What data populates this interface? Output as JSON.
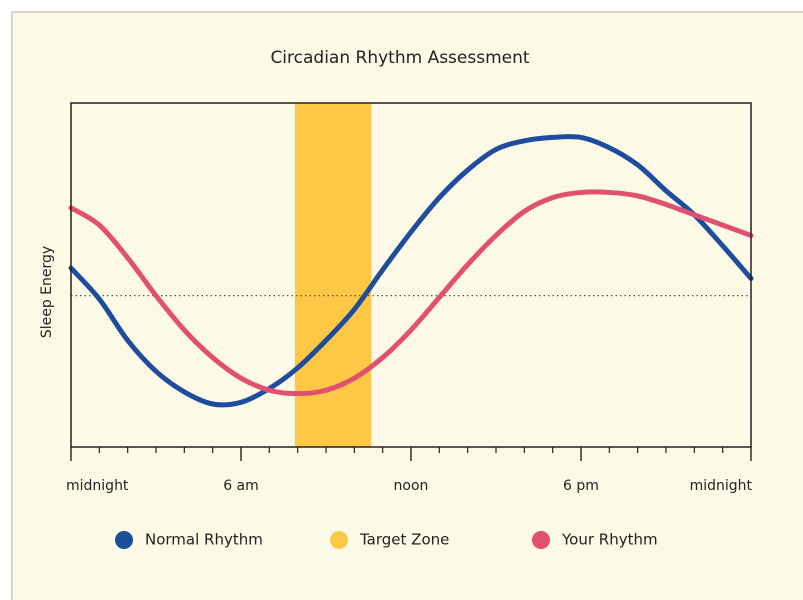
{
  "chart_data": {
    "type": "line",
    "title": "Circadian Rhythm Assessment",
    "y_label": "Sleep Energy",
    "x": [
      0,
      1,
      2,
      3,
      4,
      5,
      6,
      7,
      8,
      9,
      10,
      11,
      12,
      13,
      14,
      15,
      16,
      17,
      18,
      19,
      20,
      21,
      22,
      23,
      24
    ],
    "series": [
      {
        "name": "Normal Rhythm",
        "color": "#1f4d9e",
        "values": [
          8,
          -1,
          -13,
          -22,
          -28,
          -31.5,
          -31,
          -27,
          -21,
          -13,
          -4,
          7.5,
          18.5,
          28.5,
          36.5,
          42.5,
          45,
          46,
          46,
          43,
          38,
          30.5,
          23.5,
          14.5,
          5
        ]
      },
      {
        "name": "Your Rhythm",
        "color": "#e2506f",
        "values": [
          25.5,
          20.5,
          11,
          0,
          -10,
          -18,
          -24,
          -27.5,
          -28.5,
          -27.5,
          -24,
          -18,
          -10,
          -0.5,
          9,
          17.5,
          24.5,
          28.5,
          30,
          30,
          29,
          26.5,
          23.5,
          20.5,
          17.5
        ]
      }
    ],
    "bands": [
      {
        "name": "Target Zone",
        "color": "#fdc845",
        "x": [
          7.9,
          10.6
        ]
      }
    ],
    "hlines": [
      0
    ],
    "xlim": [
      0,
      24
    ],
    "ylim": [
      -44,
      56
    ],
    "xticks": [
      {
        "value": 0,
        "label": "midnight"
      },
      {
        "value": 6,
        "label": "6 am"
      },
      {
        "value": 12,
        "label": "noon"
      },
      {
        "value": 18,
        "label": "6 pm"
      },
      {
        "value": 24,
        "label": "midnight"
      }
    ],
    "xminorticks": [
      1,
      2,
      3,
      4,
      5,
      7,
      8,
      9,
      10,
      11,
      13,
      14,
      15,
      16,
      17,
      19,
      20,
      21,
      22,
      23
    ],
    "legend": "bottom"
  }
}
